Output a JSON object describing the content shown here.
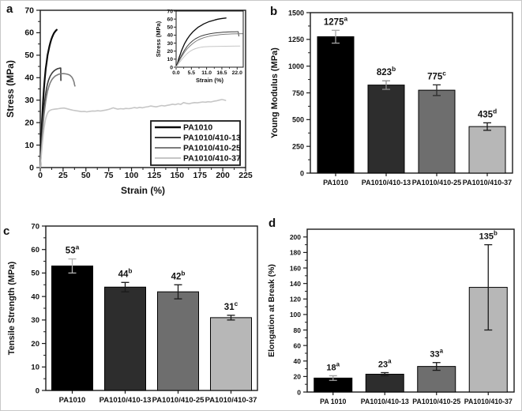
{
  "figure": {
    "background": "#ffffff",
    "border_color": "#c8c8c8"
  },
  "chart_data": [
    {
      "panel_label": "a",
      "type": "line",
      "xlabel": "Strain (%)",
      "ylabel": "Stress (MPa)",
      "xlim": [
        0,
        225
      ],
      "ylim": [
        0,
        70
      ],
      "xticks": [
        0,
        25,
        50,
        75,
        100,
        125,
        150,
        175,
        200,
        225
      ],
      "yticks": [
        0,
        10,
        20,
        30,
        40,
        50,
        60,
        70
      ],
      "legend_position": "bottom-right",
      "series": [
        {
          "name": "PA1010",
          "color": "#0a0a0a",
          "width": 2.2,
          "points": [
            [
              0,
              0
            ],
            [
              0.5,
              5
            ],
            [
              1,
              11
            ],
            [
              2,
              21
            ],
            [
              3,
              29
            ],
            [
              4,
              35
            ],
            [
              5,
              40
            ],
            [
              6,
              44
            ],
            [
              7,
              47
            ],
            [
              8,
              50
            ],
            [
              9,
              52
            ],
            [
              10,
              54
            ],
            [
              11,
              55.5
            ],
            [
              12,
              57
            ],
            [
              13,
              58
            ],
            [
              14,
              59
            ],
            [
              15,
              59.8
            ],
            [
              16,
              60.4
            ],
            [
              17,
              60.9
            ],
            [
              18,
              61.3
            ]
          ]
        },
        {
          "name": "PA1010/410-13",
          "color": "#3c3c3c",
          "width": 1.6,
          "points": [
            [
              0,
              0
            ],
            [
              0.5,
              4
            ],
            [
              1,
              8
            ],
            [
              2,
              15
            ],
            [
              3,
              21
            ],
            [
              4,
              26
            ],
            [
              5,
              30
            ],
            [
              6,
              33
            ],
            [
              7,
              35.5
            ],
            [
              8,
              37.3
            ],
            [
              9,
              38.8
            ],
            [
              10,
              39.9
            ],
            [
              11,
              40.8
            ],
            [
              12,
              41.5
            ],
            [
              13,
              42.1
            ],
            [
              14,
              42.6
            ],
            [
              15,
              43
            ],
            [
              16,
              43.3
            ],
            [
              17,
              43.6
            ],
            [
              18,
              43.8
            ],
            [
              19,
              44
            ],
            [
              20,
              44.1
            ],
            [
              21,
              44.2
            ],
            [
              22,
              44.3
            ],
            [
              22.4,
              44.3
            ],
            [
              22.6,
              38.8
            ]
          ]
        },
        {
          "name": "PA1010/410-25",
          "color": "#7d7d7d",
          "width": 1.6,
          "points": [
            [
              0,
              0
            ],
            [
              0.5,
              3.5
            ],
            [
              1,
              7
            ],
            [
              2,
              13
            ],
            [
              3,
              18.5
            ],
            [
              4,
              23
            ],
            [
              5,
              26.5
            ],
            [
              6,
              29.5
            ],
            [
              7,
              32
            ],
            [
              8,
              34
            ],
            [
              9,
              35.5
            ],
            [
              10,
              36.8
            ],
            [
              11,
              37.8
            ],
            [
              12,
              38.6
            ],
            [
              13,
              39.3
            ],
            [
              14,
              39.8
            ],
            [
              15,
              40.2
            ],
            [
              16,
              40.6
            ],
            [
              17,
              40.9
            ],
            [
              18,
              41.1
            ],
            [
              19,
              41.3
            ],
            [
              20,
              41.5
            ],
            [
              22,
              41.7
            ],
            [
              24,
              41.8
            ],
            [
              26,
              41.8
            ],
            [
              28,
              41.7
            ],
            [
              30,
              41.5
            ],
            [
              32,
              41.2
            ],
            [
              33,
              40.9
            ],
            [
              34,
              40.5
            ],
            [
              35,
              40
            ],
            [
              36,
              39.2
            ],
            [
              37,
              38
            ],
            [
              37.5,
              37
            ],
            [
              38,
              36.3
            ]
          ]
        },
        {
          "name": "PA1010/410-37",
          "color": "#c6c6c6",
          "width": 1.6,
          "points": [
            [
              0,
              0
            ],
            [
              0.5,
              2.5
            ],
            [
              1,
              5
            ],
            [
              2,
              9.5
            ],
            [
              3,
              13.5
            ],
            [
              4,
              17
            ],
            [
              5,
              19.8
            ],
            [
              6,
              21.8
            ],
            [
              7,
              23.2
            ],
            [
              8,
              24.2
            ],
            [
              9,
              24.9
            ],
            [
              10,
              25.3
            ],
            [
              12,
              25.7
            ],
            [
              14,
              25.9
            ],
            [
              16,
              26
            ],
            [
              18,
              26.1
            ],
            [
              20,
              26.2
            ],
            [
              23,
              26.4
            ],
            [
              26,
              26.5
            ],
            [
              28,
              26.3
            ],
            [
              30,
              26.1
            ],
            [
              33,
              25.8
            ],
            [
              36,
              25.5
            ],
            [
              39,
              25.3
            ],
            [
              42,
              25.1
            ],
            [
              45,
              24.9
            ],
            [
              48,
              25
            ],
            [
              51,
              24.8
            ],
            [
              54,
              25
            ],
            [
              57,
              25.2
            ],
            [
              60,
              25.1
            ],
            [
              63,
              25.3
            ],
            [
              66,
              25.2
            ],
            [
              69,
              25.4
            ],
            [
              72,
              25.6
            ],
            [
              75,
              25.9
            ],
            [
              78,
              26.3
            ],
            [
              80,
              26.6
            ],
            [
              82,
              26.3
            ],
            [
              85,
              26
            ],
            [
              88,
              26.2
            ],
            [
              91,
              26.1
            ],
            [
              94,
              26.3
            ],
            [
              97,
              26.2
            ],
            [
              100,
              26.4
            ],
            [
              103,
              26.7
            ],
            [
              106,
              26.5
            ],
            [
              109,
              26.8
            ],
            [
              112,
              26.6
            ],
            [
              115,
              26.9
            ],
            [
              118,
              27.1
            ],
            [
              121,
              27.4
            ],
            [
              124,
              27.2
            ],
            [
              127,
              27
            ],
            [
              130,
              27.3
            ],
            [
              133,
              27.6
            ],
            [
              136,
              27.4
            ],
            [
              139,
              27.7
            ],
            [
              142,
              27.9
            ],
            [
              145,
              28.2
            ],
            [
              148,
              28
            ],
            [
              151,
              28.4
            ],
            [
              154,
              28.1
            ],
            [
              157,
              28.9
            ],
            [
              160,
              28.6
            ],
            [
              163,
              28.4
            ],
            [
              166,
              28.7
            ],
            [
              169,
              28.9
            ],
            [
              172,
              28.8
            ],
            [
              175,
              29
            ],
            [
              178,
              29.2
            ],
            [
              181,
              29.1
            ],
            [
              184,
              29.3
            ],
            [
              187,
              29.2
            ],
            [
              190,
              29.5
            ],
            [
              193,
              29.7
            ],
            [
              196,
              30
            ],
            [
              199,
              30.3
            ],
            [
              201,
              30.1
            ],
            [
              203,
              29.9
            ]
          ]
        }
      ],
      "inset": {
        "xlabel": "Strain (%)",
        "ylabel": "Stress (MPa)",
        "xlim": [
          0,
          24.2
        ],
        "ylim": [
          0,
          70
        ],
        "xticks": [
          0,
          5.5,
          11,
          16.5,
          22
        ],
        "xtick_labels": [
          "0.0",
          "5.5",
          "11.0",
          "16.5",
          "22.0"
        ],
        "yticks": [
          0,
          10,
          20,
          30,
          40,
          50,
          60,
          70
        ]
      }
    },
    {
      "panel_label": "b",
      "type": "bar",
      "ylabel": "Young Modulus (MPa)",
      "ylim": [
        0,
        1500
      ],
      "yticks": [
        0,
        250,
        500,
        750,
        1000,
        1250,
        1500
      ],
      "categories": [
        "PA1010",
        "PA1010/410-13",
        "PA1010/410-25",
        "PA1010/410-37"
      ],
      "values": [
        1275,
        823,
        775,
        435
      ],
      "errors": [
        60,
        40,
        50,
        35
      ],
      "sig_letters": [
        "a",
        "b",
        "c",
        "d"
      ],
      "bar_colors": [
        "#000000",
        "#2d2d2d",
        "#6e6e6e",
        "#b7b7b7"
      ],
      "error_colors": [
        "#a6a6a6",
        "#8f8f8f",
        "#2b2b2b",
        "#1a1a1a"
      ]
    },
    {
      "panel_label": "c",
      "type": "bar",
      "ylabel": "Tensile Strength (MPa)",
      "ylim": [
        0,
        70
      ],
      "yticks": [
        0,
        10,
        20,
        30,
        40,
        50,
        60,
        70
      ],
      "categories": [
        "PA1010",
        "PA1010/410-13",
        "PA1010/410-25",
        "PA1010/410-37"
      ],
      "values": [
        53,
        44,
        42,
        31
      ],
      "errors": [
        3,
        2,
        3,
        1
      ],
      "sig_letters": [
        "a",
        "b",
        "b",
        "c"
      ],
      "bar_colors": [
        "#000000",
        "#2d2d2d",
        "#6e6e6e",
        "#b7b7b7"
      ],
      "error_colors": [
        "#b5b5b5",
        "#1a1a1a",
        "#1a1a1a",
        "#1a1a1a"
      ]
    },
    {
      "panel_label": "d",
      "type": "bar",
      "ylabel": "Elongation at Break (%)",
      "ylim": [
        0,
        210
      ],
      "yticks": [
        0,
        20,
        40,
        60,
        80,
        100,
        120,
        140,
        160,
        180,
        200
      ],
      "categories": [
        "PA 1010",
        "PA1010/410-13",
        "PA1010/410-25",
        "PA1010/410-37"
      ],
      "values": [
        18,
        23,
        33,
        135
      ],
      "errors": [
        3,
        2,
        5,
        55
      ],
      "sig_letters": [
        "a",
        "a",
        "a",
        "b"
      ],
      "bar_colors": [
        "#000000",
        "#2d2d2d",
        "#6e6e6e",
        "#b7b7b7"
      ],
      "error_colors": [
        "#9e9e9e",
        "#1a1a1a",
        "#1a1a1a",
        "#1a1a1a"
      ]
    }
  ]
}
